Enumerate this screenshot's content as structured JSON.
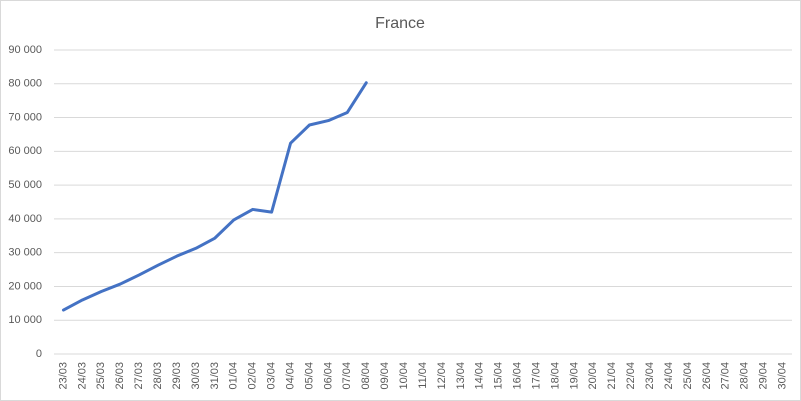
{
  "chart_data": {
    "type": "line",
    "title": "France",
    "categories": [
      "23/03",
      "24/03",
      "25/03",
      "26/03",
      "27/03",
      "28/03",
      "29/03",
      "30/03",
      "31/03",
      "01/04",
      "02/04",
      "03/04",
      "04/04",
      "05/04",
      "06/04",
      "07/04",
      "08/04",
      "09/04",
      "10/04",
      "11/04",
      "12/04",
      "13/04",
      "14/04",
      "15/04",
      "16/04",
      "17/04",
      "18/04",
      "19/04",
      "20/04",
      "21/04",
      "22/04",
      "23/04",
      "24/04",
      "25/04",
      "26/04",
      "27/04",
      "28/04",
      "29/04",
      "30/04"
    ],
    "series": [
      {
        "name": "France",
        "color": "#4472c4",
        "values": [
          13000,
          16000,
          18500,
          20700,
          23400,
          26300,
          29000,
          31300,
          34300,
          39700,
          42800,
          42000,
          62400,
          67800,
          69100,
          71500,
          80300,
          null,
          null,
          null,
          null,
          null,
          null,
          null,
          null,
          null,
          null,
          null,
          null,
          null,
          null,
          null,
          null,
          null,
          null,
          null,
          null,
          null,
          null
        ]
      }
    ],
    "ylim": [
      0,
      90000
    ],
    "yticks": [
      0,
      {
        "value": 10000,
        "label": "10 000"
      },
      {
        "value": 20000,
        "label": "20 000"
      },
      {
        "value": 30000,
        "label": "30 000"
      },
      {
        "value": 40000,
        "label": "40 000"
      },
      {
        "value": 50000,
        "label": "50 000"
      },
      {
        "value": 60000,
        "label": "60 000"
      },
      {
        "value": 70000,
        "label": "70 000"
      },
      {
        "value": 80000,
        "label": "80 000"
      },
      {
        "value": 90000,
        "label": "90 000"
      }
    ],
    "grid": true
  }
}
